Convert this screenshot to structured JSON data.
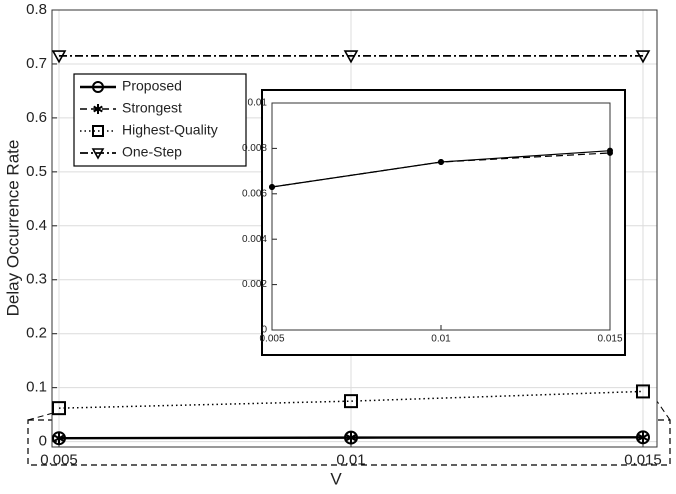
{
  "chart_data": [
    {
      "type": "line",
      "x_label": "V",
      "y_label": "Delay Occurrence Rate",
      "x": [
        0.005,
        0.01,
        0.015
      ],
      "xlim": [
        0.00488,
        0.01524
      ],
      "xticks": [
        0.005,
        0.01,
        0.015
      ],
      "ylim": [
        -0.01,
        0.8
      ],
      "yticks": [
        0,
        0.1,
        0.2,
        0.3,
        0.4,
        0.5,
        0.6,
        0.7,
        0.8
      ],
      "grid": true,
      "legend": "upper left",
      "series": [
        {
          "name": "Proposed",
          "color": "#000000",
          "line_style": "solid",
          "marker": "circle",
          "values": [
            0.0063,
            0.0074,
            0.0079
          ]
        },
        {
          "name": "Strongest",
          "color": "#000000",
          "line_style": "dashed",
          "marker": "asterisk",
          "values": [
            0.0063,
            0.0074,
            0.0078
          ]
        },
        {
          "name": "Highest-Quality",
          "color": "#000000",
          "line_style": "dotted",
          "marker": "square",
          "values": [
            0.062,
            0.075,
            0.093
          ]
        },
        {
          "name": "One-Step",
          "color": "#000000",
          "line_style": "dashdot",
          "marker": "triangle-down",
          "values": [
            0.715,
            0.715,
            0.715
          ]
        }
      ]
    },
    {
      "type": "line",
      "x": [
        0.005,
        0.01,
        0.015
      ],
      "xlim": [
        0.005,
        0.015
      ],
      "xticks": [
        0.005,
        0.01,
        0.015
      ],
      "ylim": [
        0,
        0.01
      ],
      "yticks": [
        0,
        0.002,
        0.004,
        0.006,
        0.008,
        0.01
      ],
      "grid": false,
      "series": [
        {
          "color": "#000000",
          "line_style": "solid",
          "marker": "dot",
          "values": [
            0.0063,
            0.0074,
            0.0079
          ]
        },
        {
          "color": "#000000",
          "line_style": "dashed",
          "marker": "dot",
          "values": [
            0.0063,
            0.0074,
            0.0078
          ]
        }
      ]
    }
  ]
}
